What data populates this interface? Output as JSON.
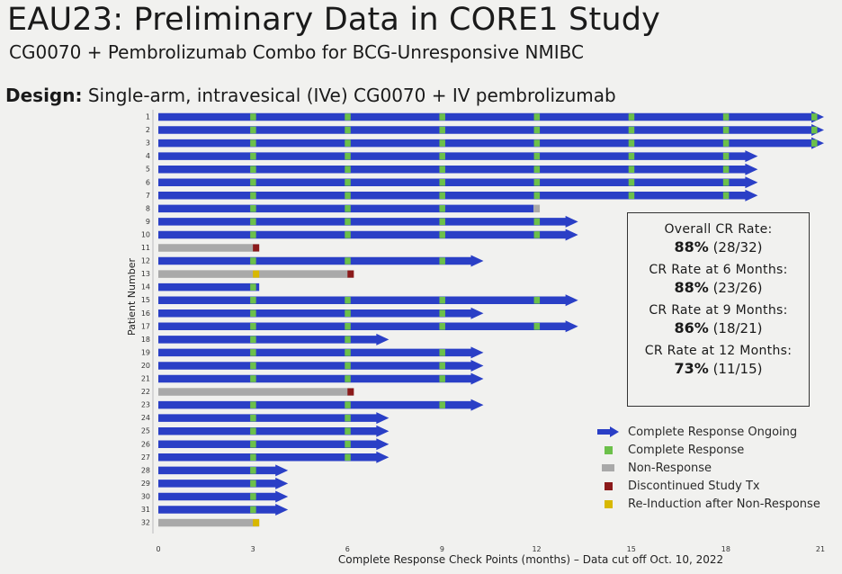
{
  "header": {
    "title": "EAU23: Preliminary Data in CORE1 Study",
    "subtitle": "CG0070 + Pembrolizumab Combo for BCG-Unresponsive NMIBC",
    "design_label": "Design:",
    "design_text": "Single-arm, intravesical (IVe) CG0070 + IV pembrolizumab"
  },
  "stats": [
    {
      "label": "Overall CR Rate:",
      "pct": "88%",
      "detail": "(28/32)"
    },
    {
      "label": "CR Rate at 6 Months:",
      "pct": "88%",
      "detail": "(23/26)"
    },
    {
      "label": "CR Rate at 9 Months:",
      "pct": "86%",
      "detail": "(18/21)"
    },
    {
      "label": "CR Rate at 12 Months:",
      "pct": "73%",
      "detail": "(11/15)"
    }
  ],
  "legend": [
    {
      "key": "ongoing",
      "label": "Complete Response Ongoing"
    },
    {
      "key": "cr",
      "label": "Complete Response"
    },
    {
      "key": "nr",
      "label": "Non-Response"
    },
    {
      "key": "disc",
      "label": "Discontinued Study Tx"
    },
    {
      "key": "reind",
      "label": "Re-Induction after Non-Response"
    }
  ],
  "chart_data": {
    "type": "swimmer",
    "xlabel": "Complete Response Check Points (months) – Data cut off Oct. 10, 2022",
    "ylabel": "Patient Number",
    "xlim": [
      0,
      21
    ],
    "xticks": [
      0,
      3,
      6,
      9,
      12,
      15,
      18,
      21
    ],
    "colors": {
      "ongoing": "#2a3fc6",
      "cr": "#6cc04a",
      "nr": "#a9a9a9",
      "disc": "#8b1a1a",
      "reind": "#d8b800"
    },
    "patients": [
      {
        "id": "1",
        "end": 21,
        "type": "ongoing",
        "cr": [
          3,
          6,
          9,
          12,
          15,
          18,
          20.8
        ]
      },
      {
        "id": "2",
        "end": 21,
        "type": "ongoing",
        "cr": [
          3,
          6,
          9,
          12,
          15,
          18,
          20.8
        ]
      },
      {
        "id": "3",
        "end": 21,
        "type": "ongoing",
        "cr": [
          3,
          6,
          9,
          12,
          15,
          18,
          20.8
        ]
      },
      {
        "id": "4",
        "end": 18.9,
        "type": "ongoing",
        "cr": [
          3,
          6,
          9,
          12,
          15,
          18
        ]
      },
      {
        "id": "5",
        "end": 18.9,
        "type": "ongoing",
        "cr": [
          3,
          6,
          9,
          12,
          15,
          18
        ]
      },
      {
        "id": "6",
        "end": 18.9,
        "type": "ongoing",
        "cr": [
          3,
          6,
          9,
          12,
          15,
          18
        ]
      },
      {
        "id": "7",
        "end": 18.9,
        "type": "ongoing",
        "cr": [
          3,
          6,
          9,
          12,
          15,
          18
        ]
      },
      {
        "id": "8",
        "end": 12.1,
        "type": "bar",
        "cr": [
          3,
          6,
          9
        ],
        "nr_from": 11.9
      },
      {
        "id": "9",
        "end": 13.2,
        "type": "ongoing",
        "cr": [
          3,
          6,
          9,
          12
        ]
      },
      {
        "id": "10",
        "end": 13.2,
        "type": "ongoing",
        "cr": [
          3,
          6,
          9,
          12
        ]
      },
      {
        "id": "11",
        "end": 3.2,
        "type": "nr",
        "disc": 3.1
      },
      {
        "id": "12",
        "end": 10.2,
        "type": "ongoing",
        "cr": [
          3,
          6,
          9
        ]
      },
      {
        "id": "13",
        "end": 6.2,
        "type": "nr",
        "reind": 3.1,
        "disc": 6.1
      },
      {
        "id": "14",
        "end": 3.2,
        "type": "bar",
        "cr": [
          3
        ]
      },
      {
        "id": "15",
        "end": 13.2,
        "type": "ongoing",
        "cr": [
          3,
          6,
          9,
          12
        ]
      },
      {
        "id": "16",
        "end": 10.2,
        "type": "ongoing",
        "cr": [
          3,
          6,
          9
        ]
      },
      {
        "id": "17",
        "end": 13.2,
        "type": "ongoing",
        "cr": [
          3,
          6,
          9,
          12
        ]
      },
      {
        "id": "18",
        "end": 7.2,
        "type": "ongoing",
        "cr": [
          3,
          6
        ]
      },
      {
        "id": "19",
        "end": 10.2,
        "type": "ongoing",
        "cr": [
          3,
          6,
          9
        ]
      },
      {
        "id": "20",
        "end": 10.2,
        "type": "ongoing",
        "cr": [
          3,
          6,
          9
        ]
      },
      {
        "id": "21",
        "end": 10.2,
        "type": "ongoing",
        "cr": [
          3,
          6,
          9
        ]
      },
      {
        "id": "22",
        "end": 6.2,
        "type": "nr",
        "disc": 6.1
      },
      {
        "id": "23",
        "end": 10.2,
        "type": "ongoing",
        "cr": [
          3,
          6,
          9
        ]
      },
      {
        "id": "24",
        "end": 7.2,
        "type": "ongoing",
        "cr": [
          3,
          6
        ]
      },
      {
        "id": "25",
        "end": 7.2,
        "type": "ongoing",
        "cr": [
          3,
          6
        ]
      },
      {
        "id": "26",
        "end": 7.2,
        "type": "ongoing",
        "cr": [
          3,
          6
        ]
      },
      {
        "id": "27",
        "end": 7.2,
        "type": "ongoing",
        "cr": [
          3,
          6
        ]
      },
      {
        "id": "28",
        "end": 4.0,
        "type": "ongoing",
        "cr": [
          3
        ]
      },
      {
        "id": "29",
        "end": 4.0,
        "type": "ongoing",
        "cr": [
          3
        ]
      },
      {
        "id": "30",
        "end": 4.0,
        "type": "ongoing",
        "cr": [
          3
        ]
      },
      {
        "id": "31",
        "end": 4.0,
        "type": "ongoing",
        "cr": [
          3
        ]
      },
      {
        "id": "32",
        "end": 3.2,
        "type": "nr",
        "reind": 3.1
      }
    ]
  }
}
